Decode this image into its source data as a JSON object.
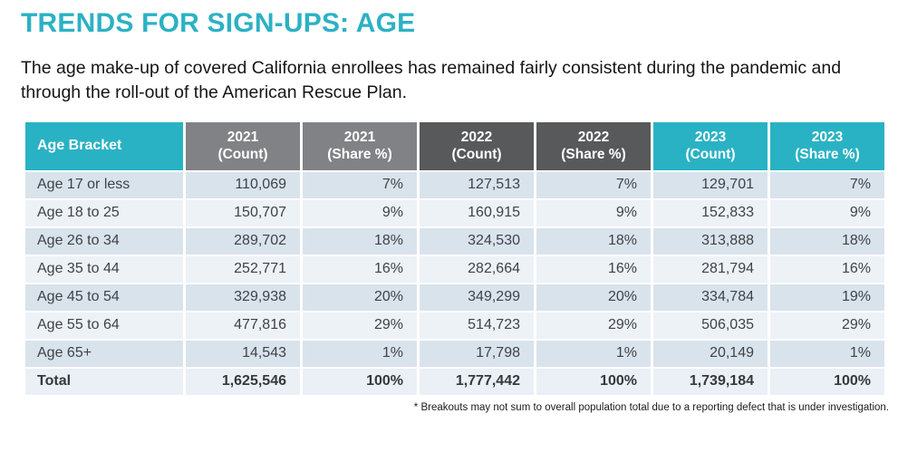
{
  "slide": {
    "title": "TRENDS FOR SIGN-UPS: AGE",
    "subtitle": "The age make-up of covered California enrollees has remained fairly consistent during the pandemic and through the roll-out of the American Rescue Plan.",
    "footnote": "* Breakouts may not sum to overall population total due to a reporting defect that is under investigation."
  },
  "colors": {
    "accent_teal": "#29b2c4",
    "header_gray_2021": "#808285",
    "header_gray_2022": "#58595b",
    "row_shade_dark": "#d9e3ec",
    "row_shade_light": "#edf2f7",
    "body_text": "#3e4347"
  },
  "table": {
    "headers": [
      {
        "line1": "Age Bracket",
        "line2": ""
      },
      {
        "line1": "2021",
        "line2": "(Count)"
      },
      {
        "line1": "2021",
        "line2": "(Share %)"
      },
      {
        "line1": "2022",
        "line2": "(Count)"
      },
      {
        "line1": "2022",
        "line2": "(Share %)"
      },
      {
        "line1": "2023",
        "line2": "(Count)"
      },
      {
        "line1": "2023",
        "line2": "(Share %)"
      }
    ],
    "rows": [
      [
        "Age 17 or less",
        "110,069",
        "7%",
        "127,513",
        "7%",
        "129,701",
        "7%"
      ],
      [
        "Age 18 to 25",
        "150,707",
        "9%",
        "160,915",
        "9%",
        "152,833",
        "9%"
      ],
      [
        "Age 26 to 34",
        "289,702",
        "18%",
        "324,530",
        "18%",
        "313,888",
        "18%"
      ],
      [
        "Age 35 to 44",
        "252,771",
        "16%",
        "282,664",
        "16%",
        "281,794",
        "16%"
      ],
      [
        "Age 45 to 54",
        "329,938",
        "20%",
        "349,299",
        "20%",
        "334,784",
        "19%"
      ],
      [
        "Age 55 to 64",
        "477,816",
        "29%",
        "514,723",
        "29%",
        "506,035",
        "29%"
      ],
      [
        "Age 65+",
        "14,543",
        "1%",
        "17,798",
        "1%",
        "20,149",
        "1%"
      ],
      [
        "Total",
        "1,625,546",
        "100%",
        "1,777,442",
        "100%",
        "1,739,184",
        "100%"
      ]
    ]
  },
  "chart_data": {
    "type": "table",
    "title": "TRENDS FOR SIGN-UPS: AGE",
    "columns": [
      "Age Bracket",
      "2021 (Count)",
      "2021 (Share %)",
      "2022 (Count)",
      "2022 (Share %)",
      "2023 (Count)",
      "2023 (Share %)"
    ],
    "rows": [
      {
        "age_bracket": "Age 17 or less",
        "count_2021": 110069,
        "share_2021": "7%",
        "count_2022": 127513,
        "share_2022": "7%",
        "count_2023": 129701,
        "share_2023": "7%"
      },
      {
        "age_bracket": "Age 18 to 25",
        "count_2021": 150707,
        "share_2021": "9%",
        "count_2022": 160915,
        "share_2022": "9%",
        "count_2023": 152833,
        "share_2023": "9%"
      },
      {
        "age_bracket": "Age 26 to 34",
        "count_2021": 289702,
        "share_2021": "18%",
        "count_2022": 324530,
        "share_2022": "18%",
        "count_2023": 313888,
        "share_2023": "18%"
      },
      {
        "age_bracket": "Age 35 to 44",
        "count_2021": 252771,
        "share_2021": "16%",
        "count_2022": 282664,
        "share_2022": "16%",
        "count_2023": 281794,
        "share_2023": "16%"
      },
      {
        "age_bracket": "Age 45 to 54",
        "count_2021": 329938,
        "share_2021": "20%",
        "count_2022": 349299,
        "share_2022": "20%",
        "count_2023": 334784,
        "share_2023": "19%"
      },
      {
        "age_bracket": "Age 55 to 64",
        "count_2021": 477816,
        "share_2021": "29%",
        "count_2022": 514723,
        "share_2022": "29%",
        "count_2023": 506035,
        "share_2023": "29%"
      },
      {
        "age_bracket": "Age 65+",
        "count_2021": 14543,
        "share_2021": "1%",
        "count_2022": 17798,
        "share_2022": "1%",
        "count_2023": 20149,
        "share_2023": "1%"
      },
      {
        "age_bracket": "Total",
        "count_2021": 1625546,
        "share_2021": "100%",
        "count_2022": 1777442,
        "share_2022": "100%",
        "count_2023": 1739184,
        "share_2023": "100%"
      }
    ]
  }
}
